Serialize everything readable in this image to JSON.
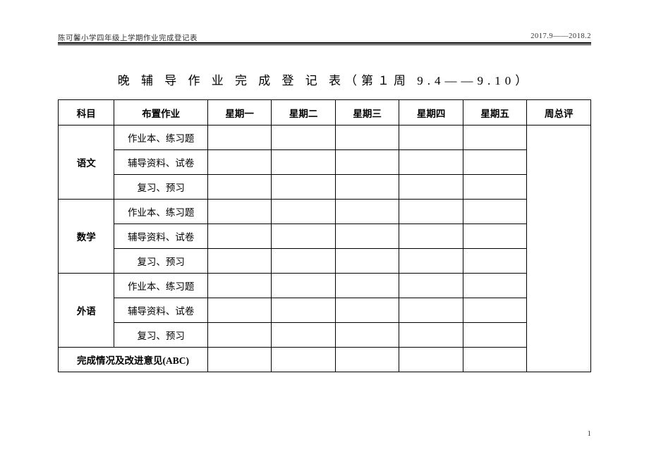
{
  "header": {
    "left": "陈可馨小学四年级上学期作业完成登记表",
    "right": "2017.9——2018.2"
  },
  "title": "晚 辅 导 作 业 完 成 登 记 表（第１周 9.4——9.10）",
  "columns": [
    "科目",
    "布置作业",
    "星期一",
    "星期二",
    "星期三",
    "星期四",
    "星期五",
    "周总评"
  ],
  "subjects": [
    {
      "name": "语文",
      "tasks": [
        "作业本、练习题",
        "辅导资料、试卷",
        "复习、预习"
      ]
    },
    {
      "name": "数学",
      "tasks": [
        "作业本、练习题",
        "辅导资料、试卷",
        "复习、预习"
      ]
    },
    {
      "name": "外语",
      "tasks": [
        "作业本、练习题",
        "辅导资料、试卷",
        "复习、预习"
      ]
    }
  ],
  "footer_row": "完成情况及改进意见(ABC)",
  "page_number": "1",
  "style": {
    "background_color": "#ffffff",
    "text_color": "#000000",
    "border_color": "#000000",
    "title_fontsize": 17,
    "cell_fontsize": 13.5,
    "header_fontsize": 10.5
  }
}
